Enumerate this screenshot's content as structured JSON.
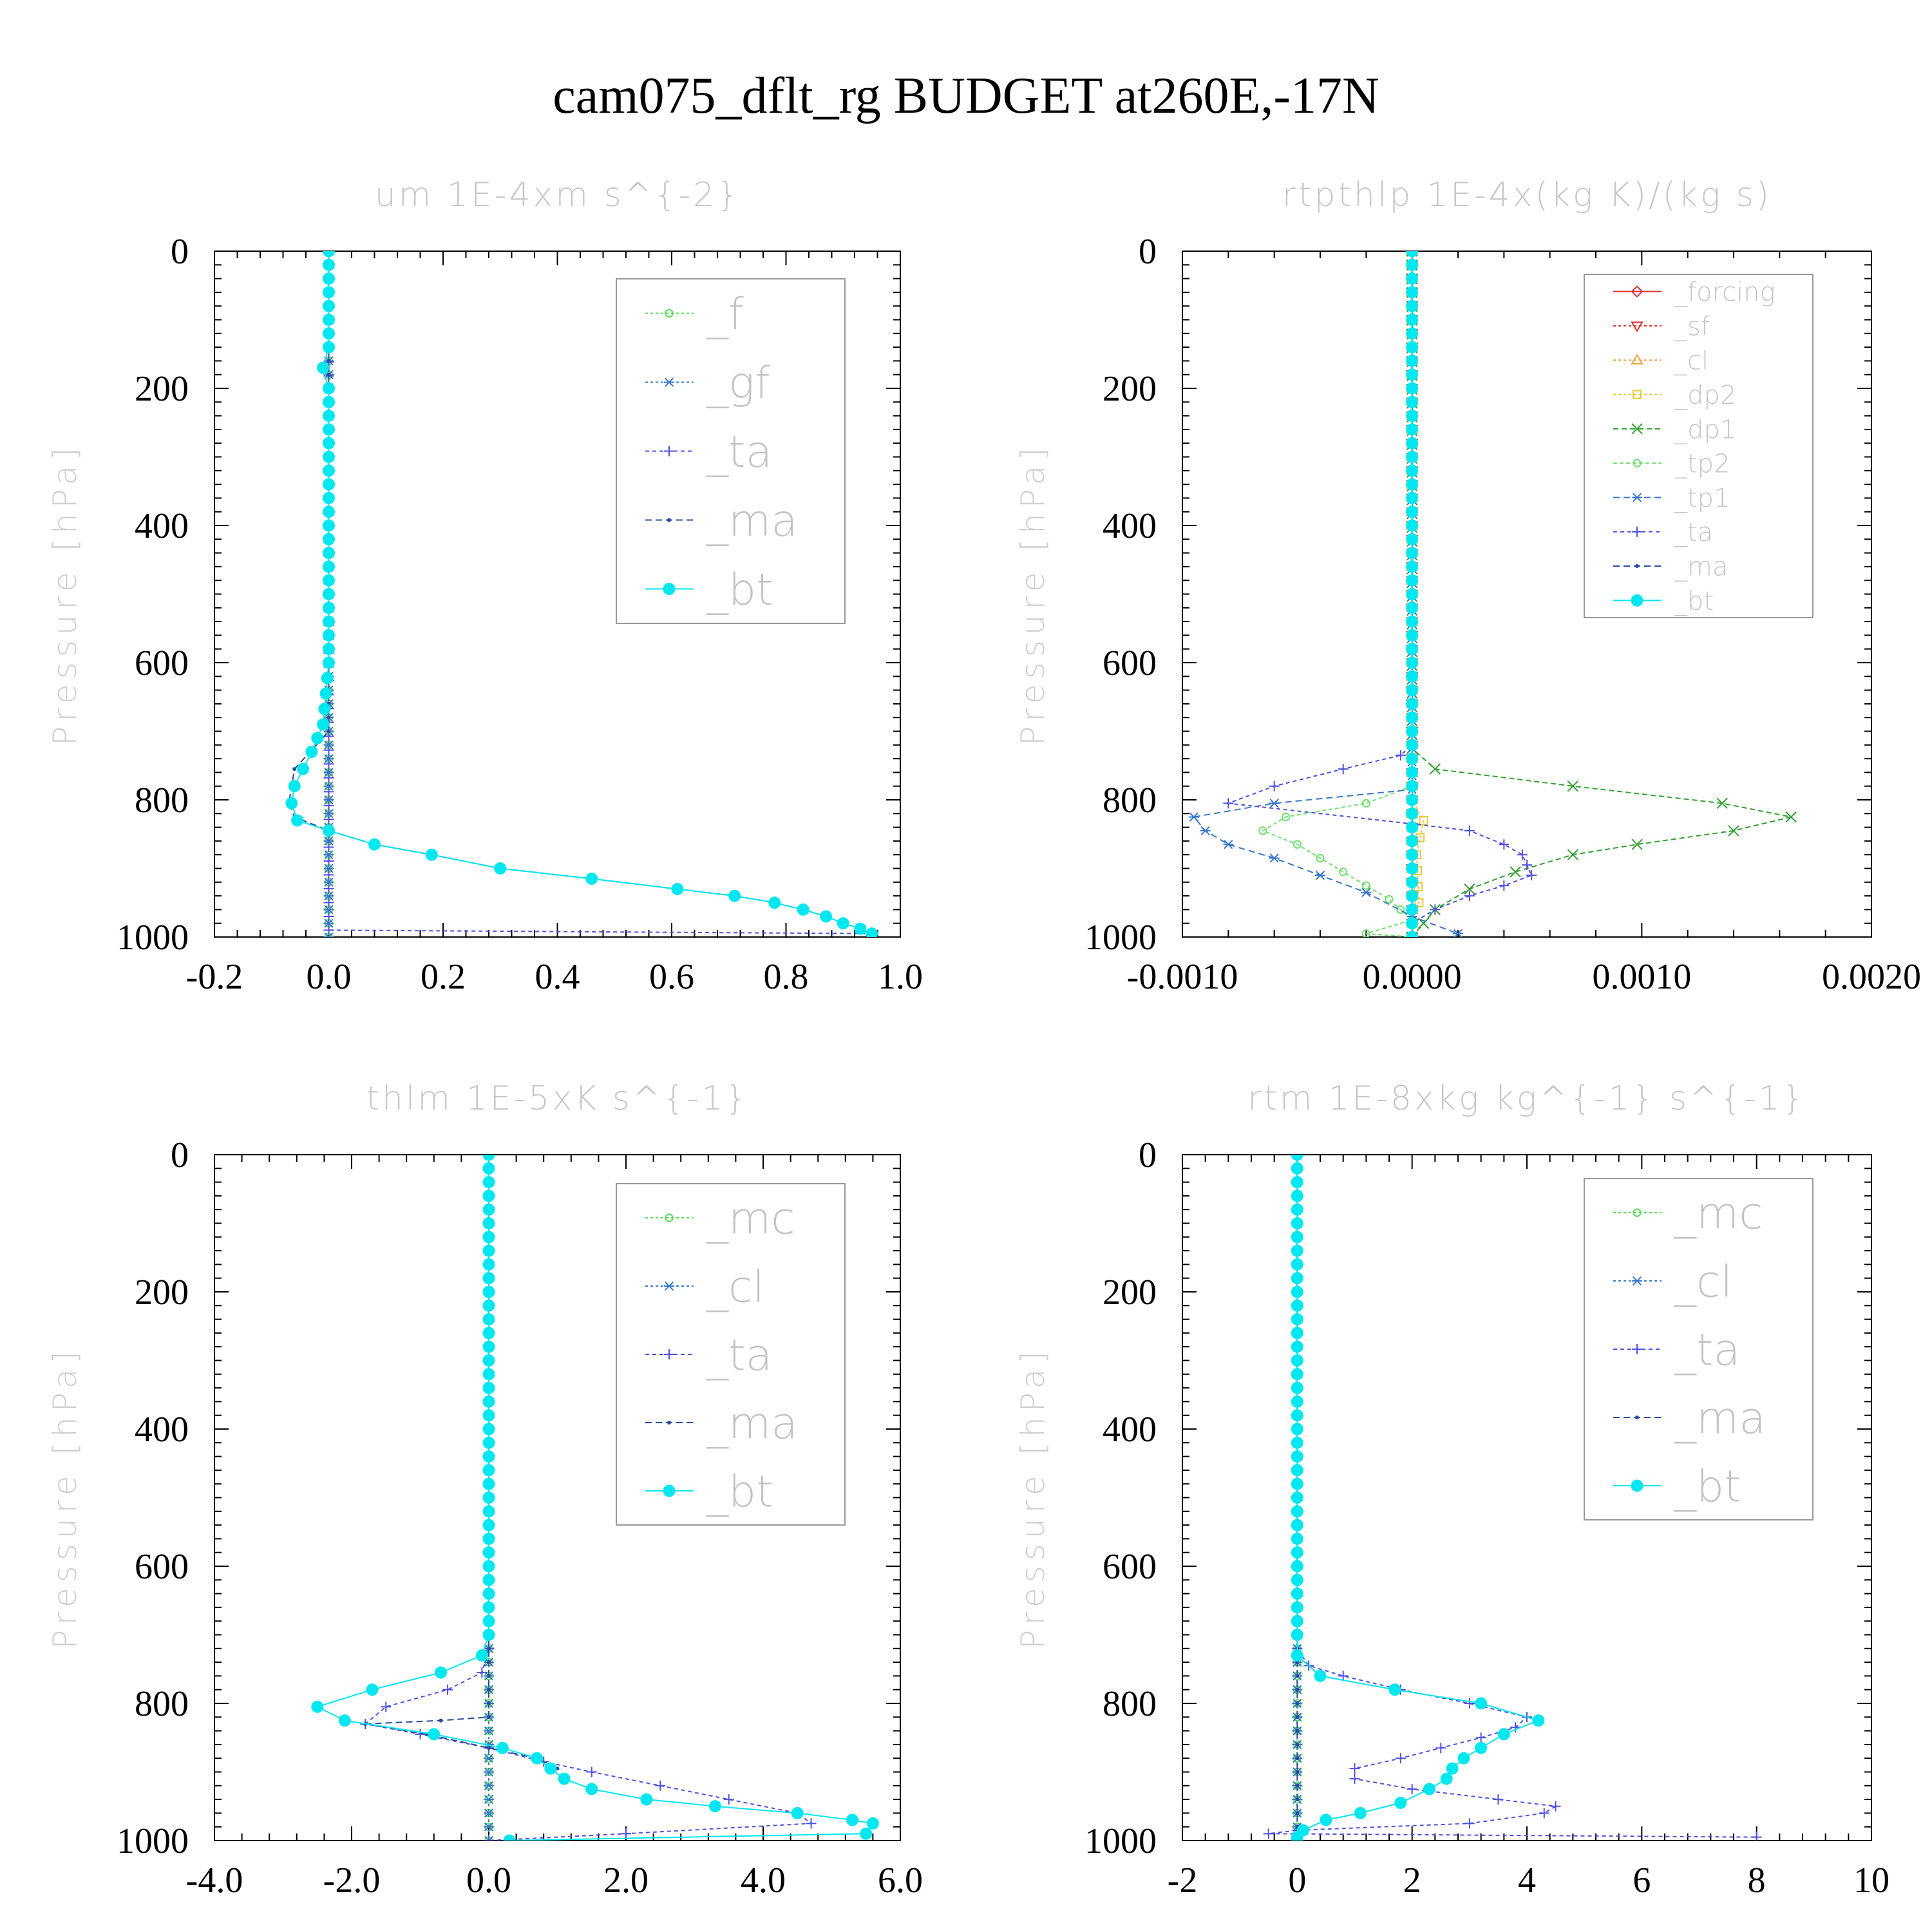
{
  "title": "cam075_dflt_rg  BUDGET at260E,-17N",
  "colors": {
    "green": "#55dd55",
    "blue": "#3a78c8",
    "purple": "#5050e0",
    "navy": "#2a4aa0",
    "cyan": "#00e8ef",
    "red": "#e03030",
    "orange": "#f0a040",
    "yellow": "#e8c830",
    "darkgreen": "#30a030",
    "lightgreen": "#70e070"
  },
  "chart_data": [
    {
      "type": "line",
      "title": "um   1E-4xm s^{-2}",
      "xlabel": "",
      "ylabel": "Pressure [hPa]",
      "xlim": [
        -0.2,
        1.0
      ],
      "ylim": [
        1000,
        0
      ],
      "xticks": [
        "-0.2",
        "0.0",
        "0.2",
        "0.4",
        "0.6",
        "0.8",
        "1.0"
      ],
      "xtick_values": [
        -0.2,
        0.0,
        0.2,
        0.4,
        0.6,
        0.8,
        1.0
      ],
      "yticks": [
        "0",
        "200",
        "400",
        "600",
        "800",
        "1000"
      ],
      "ytick_values": [
        0,
        200,
        400,
        600,
        800,
        1000
      ],
      "legend_position": "top-right",
      "legend_font": 68,
      "series": [
        {
          "name": "_f",
          "color": "green",
          "marker": "circle-open",
          "dash": "4,4",
          "x": [
            0.0,
            0.0
          ],
          "y": [
            0,
            1000
          ]
        },
        {
          "name": "_gf",
          "color": "blue",
          "marker": "asterisk",
          "dash": "4,4",
          "x": [
            0.0,
            0.0
          ],
          "y": [
            0,
            1000
          ]
        },
        {
          "name": "_ta",
          "color": "purple",
          "marker": "plus",
          "dash": "6,5",
          "x": [
            0.0,
            0.0,
            0.0,
            0.95
          ],
          "y": [
            0,
            970,
            990,
            995
          ]
        },
        {
          "name": "_ma",
          "color": "navy",
          "marker": "dot",
          "dash": "10,6",
          "x": [
            0.0,
            0.0,
            -0.06,
            -0.07,
            -0.06,
            0.0,
            0.08,
            0.18,
            0.3,
            0.46,
            0.61,
            0.71,
            0.78,
            0.83,
            0.87,
            0.9,
            0.93,
            0.95
          ],
          "y": [
            0,
            700,
            755,
            805,
            825,
            845,
            865,
            880,
            900,
            915,
            930,
            940,
            950,
            960,
            970,
            980,
            988,
            995
          ]
        },
        {
          "name": "_bt",
          "color": "cyan",
          "marker": "dot-filled",
          "dash": "",
          "x": [
            0.0,
            0.0,
            0.0,
            -0.01,
            0.0,
            0.0,
            0.0,
            0.0,
            0.0,
            -0.01,
            -0.03,
            -0.06,
            -0.065,
            -0.055,
            0.0,
            0.08,
            0.18,
            0.3,
            0.46,
            0.61,
            0.71,
            0.78,
            0.83,
            0.87,
            0.9,
            0.93,
            0.95
          ],
          "y": [
            0,
            100,
            140,
            170,
            200,
            300,
            400,
            500,
            600,
            690,
            730,
            780,
            805,
            830,
            845,
            865,
            880,
            900,
            915,
            930,
            940,
            950,
            960,
            970,
            980,
            988,
            995
          ]
        }
      ]
    },
    {
      "type": "line",
      "title": "rtpthlp   1E-4x(kg K)/(kg s)",
      "xlabel": "",
      "ylabel": "Pressure [hPa]",
      "xlim": [
        -0.001,
        0.002
      ],
      "ylim": [
        1000,
        0
      ],
      "xticks": [
        "-0.0010",
        "0.0000",
        "0.0010",
        "0.0020"
      ],
      "xtick_values": [
        -0.001,
        0.0,
        0.001,
        0.002
      ],
      "yticks": [
        "0",
        "200",
        "400",
        "600",
        "800",
        "1000"
      ],
      "ytick_values": [
        0,
        200,
        400,
        600,
        800,
        1000
      ],
      "legend_position": "top-right",
      "legend_font": 40,
      "series": [
        {
          "name": "_forcing",
          "color": "red",
          "marker": "diamond-open",
          "dash": "",
          "x": [
            0.0,
            0.0
          ],
          "y": [
            0,
            1000
          ]
        },
        {
          "name": "_sf",
          "color": "red",
          "marker": "triangle-down-open",
          "dash": "4,4",
          "x": [
            0.0,
            0.0
          ],
          "y": [
            0,
            1000
          ]
        },
        {
          "name": "_cl",
          "color": "orange",
          "marker": "triangle-up-open",
          "dash": "4,4",
          "x": [
            0.0,
            0.0
          ],
          "y": [
            0,
            1000
          ]
        },
        {
          "name": "_dp2",
          "color": "yellow",
          "marker": "square-open",
          "dash": "4,4",
          "x": [
            0.0,
            0.0,
            5e-05,
            2e-05,
            3e-05,
            0.0,
            0.0
          ],
          "y": [
            0,
            800,
            830,
            880,
            950,
            980,
            1000
          ]
        },
        {
          "name": "_dp1",
          "color": "darkgreen",
          "marker": "cross",
          "dash": "8,5",
          "x": [
            0.0,
            0.0,
            0.0001,
            0.0007,
            0.00135,
            0.00165,
            0.0014,
            0.00098,
            0.0007,
            0.00045,
            0.00025,
            0.0001,
            0.0
          ],
          "y": [
            0,
            725,
            755,
            780,
            805,
            825,
            845,
            865,
            880,
            905,
            930,
            960,
            1000
          ]
        },
        {
          "name": "_tp2",
          "color": "lightgreen",
          "marker": "circle-open",
          "dash": "6,4",
          "x": [
            0.0,
            0.0,
            -0.0002,
            -0.00055,
            -0.00065,
            -0.0005,
            -0.0004,
            -0.0003,
            -0.0002,
            -0.0001,
            -5e-05,
            0.0,
            -0.0002,
            0.0
          ],
          "y": [
            0,
            780,
            805,
            825,
            845,
            865,
            885,
            905,
            925,
            945,
            960,
            975,
            995,
            1000
          ]
        },
        {
          "name": "_tp1",
          "color": "blue",
          "marker": "asterisk",
          "dash": "10,6",
          "x": [
            0.0,
            0.0,
            -0.0006,
            -0.00095,
            -0.0009,
            -0.0008,
            -0.0006,
            -0.0004,
            -0.0002,
            0.0,
            0.0002
          ],
          "y": [
            0,
            785,
            805,
            825,
            845,
            865,
            885,
            910,
            935,
            970,
            995
          ]
        },
        {
          "name": "_ta",
          "color": "purple",
          "marker": "plus",
          "dash": "6,5",
          "x": [
            0.0,
            0.0,
            -5e-05,
            -0.0003,
            -0.0006,
            -0.0008,
            0.0,
            0.00025,
            0.0004,
            0.00048,
            0.0005,
            0.00052,
            0.0004,
            0.00025,
            0.0001,
            0.0
          ],
          "y": [
            0,
            720,
            735,
            755,
            780,
            805,
            835,
            845,
            865,
            880,
            895,
            910,
            925,
            940,
            960,
            980
          ]
        },
        {
          "name": "_ma",
          "color": "navy",
          "marker": "dot",
          "dash": "10,6",
          "x": [
            0.0,
            0.0
          ],
          "y": [
            0,
            1000
          ]
        },
        {
          "name": "_bt",
          "color": "cyan",
          "marker": "dot-filled",
          "dash": "",
          "x": [
            0.0,
            0.0
          ],
          "y": [
            0,
            1000
          ]
        }
      ]
    },
    {
      "type": "line",
      "title": "thlm   1E-5xK s^{-1}",
      "xlabel": "",
      "ylabel": "Pressure [hPa]",
      "xlim": [
        -4.0,
        6.0
      ],
      "ylim": [
        1000,
        0
      ],
      "xticks": [
        "-4.0",
        "-2.0",
        "0.0",
        "2.0",
        "4.0",
        "6.0"
      ],
      "xtick_values": [
        -4.0,
        -2.0,
        0.0,
        2.0,
        4.0,
        6.0
      ],
      "yticks": [
        "0",
        "200",
        "400",
        "600",
        "800",
        "1000"
      ],
      "ytick_values": [
        0,
        200,
        400,
        600,
        800,
        1000
      ],
      "legend_position": "top-right",
      "legend_font": 68,
      "series": [
        {
          "name": "_mc",
          "color": "green",
          "marker": "circle-open",
          "dash": "4,4",
          "x": [
            0.0,
            0.0
          ],
          "y": [
            0,
            1000
          ]
        },
        {
          "name": "_cl",
          "color": "blue",
          "marker": "asterisk",
          "dash": "4,4",
          "x": [
            0.0,
            0.0
          ],
          "y": [
            0,
            1000
          ]
        },
        {
          "name": "_ta",
          "color": "purple",
          "marker": "plus",
          "dash": "6,5",
          "x": [
            0.0,
            0.0,
            -0.1,
            -0.6,
            -1.5,
            -1.8,
            -1.0,
            0.0,
            0.8,
            1.5,
            2.5,
            3.5,
            4.5,
            4.7,
            2.0,
            0.0
          ],
          "y": [
            0,
            720,
            755,
            780,
            805,
            830,
            845,
            865,
            885,
            900,
            920,
            940,
            960,
            975,
            990,
            1000
          ]
        },
        {
          "name": "_ma",
          "color": "navy",
          "marker": "dot",
          "dash": "10,6",
          "x": [
            0.0,
            0.0,
            -0.7,
            -1.8,
            -0.9,
            0.0,
            0.7,
            1.0
          ],
          "y": [
            0,
            820,
            825,
            830,
            845,
            865,
            880,
            895
          ]
        },
        {
          "name": "_bt",
          "color": "cyan",
          "marker": "dot-filled",
          "dash": "",
          "x": [
            0.0,
            0.0,
            -0.1,
            -0.7,
            -1.7,
            -2.5,
            -2.1,
            -0.8,
            0.2,
            0.7,
            0.9,
            1.1,
            1.5,
            2.3,
            3.3,
            4.5,
            5.3,
            5.6,
            5.5,
            0.3
          ],
          "y": [
            0,
            700,
            730,
            755,
            780,
            805,
            825,
            845,
            865,
            880,
            895,
            910,
            925,
            940,
            950,
            960,
            970,
            975,
            990,
            1000
          ]
        }
      ]
    },
    {
      "type": "line",
      "title": "rtm   1E-8xkg kg^{-1} s^{-1}",
      "xlabel": "",
      "ylabel": "Pressure [hPa]",
      "xlim": [
        -2,
        10
      ],
      "ylim": [
        1000,
        0
      ],
      "xticks": [
        "-2",
        "0",
        "2",
        "4",
        "6",
        "8",
        "10"
      ],
      "xtick_values": [
        -2,
        0,
        2,
        4,
        6,
        8,
        10
      ],
      "yticks": [
        "0",
        "200",
        "400",
        "600",
        "800",
        "1000"
      ],
      "ytick_values": [
        0,
        200,
        400,
        600,
        800,
        1000
      ],
      "legend_position": "top-right",
      "legend_font": 68,
      "series": [
        {
          "name": "_mc",
          "color": "green",
          "marker": "circle-open",
          "dash": "4,4",
          "x": [
            0.0,
            0.0
          ],
          "y": [
            0,
            1000
          ]
        },
        {
          "name": "_cl",
          "color": "blue",
          "marker": "asterisk",
          "dash": "4,4",
          "x": [
            0.0,
            0.0
          ],
          "y": [
            0,
            1000
          ]
        },
        {
          "name": "_ta",
          "color": "purple",
          "marker": "plus",
          "dash": "6,5",
          "x": [
            0.0,
            0.0,
            0.2,
            0.8,
            1.8,
            3.0,
            4.0,
            3.8,
            3.2,
            2.5,
            1.8,
            1.0,
            1.0,
            2.0,
            3.5,
            4.5,
            4.3,
            3.0,
            0.0,
            -0.5,
            8.0
          ],
          "y": [
            0,
            720,
            745,
            760,
            780,
            800,
            820,
            835,
            850,
            865,
            880,
            895,
            910,
            925,
            940,
            950,
            960,
            975,
            985,
            990,
            995
          ]
        },
        {
          "name": "_ma",
          "color": "navy",
          "marker": "dot",
          "dash": "10,6",
          "x": [
            0.0,
            0.0
          ],
          "y": [
            0,
            1000
          ]
        },
        {
          "name": "_bt",
          "color": "cyan",
          "marker": "dot-filled",
          "dash": "",
          "x": [
            0.0,
            0.0,
            0.0,
            0.4,
            1.7,
            3.2,
            4.2,
            3.6,
            3.2,
            2.9,
            2.7,
            2.6,
            2.3,
            1.8,
            1.1,
            0.5,
            0.1,
            0.0,
            0.0
          ],
          "y": [
            0,
            700,
            730,
            760,
            780,
            800,
            825,
            845,
            865,
            880,
            895,
            910,
            925,
            945,
            960,
            970,
            985,
            995,
            1000
          ]
        }
      ]
    }
  ]
}
